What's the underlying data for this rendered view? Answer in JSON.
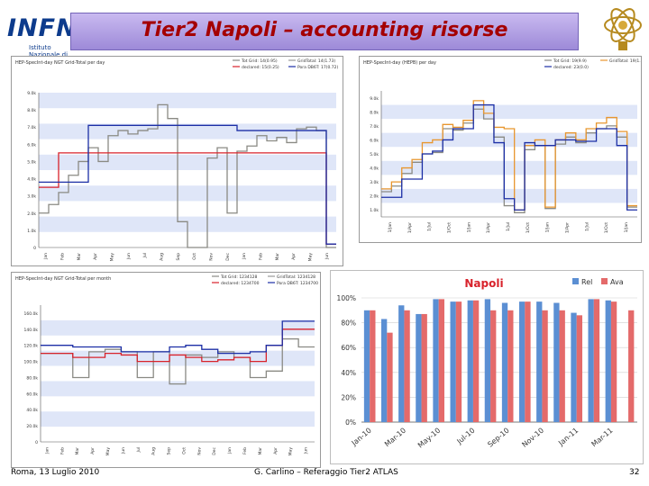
{
  "header": {
    "logo_text": "INFN",
    "logo_subtitle": "Istituto Nazionale di Fisica Nucleare",
    "title": "Tier2 Napoli – accounting risorse"
  },
  "footer": {
    "left": "Roma, 13 Luglio 2010",
    "center": "G. Carlino – Referaggio Tier2 ATLAS",
    "right": "32"
  },
  "colors": {
    "blue": "#1c2fa6",
    "red": "#d8222b",
    "gray": "#8a8a84",
    "orange": "#e8962e",
    "rel": "#5b8fd3",
    "ava": "#e46a6a"
  },
  "chart_data": [
    {
      "type": "line",
      "title": "HEP-SpecInt-day NGT Grid-Total per day",
      "legend": [
        "Tot Grid: 14(0.95)",
        "GridTotal: 14(1.73)",
        "declared: 15(0.25)",
        "Pora DB6T: 17(0.72)"
      ],
      "x_tick_labels": [
        "Jan",
        "Feb",
        "Mar",
        "Apr",
        "May",
        "Jun",
        "Jul",
        "Aug",
        "Sep",
        "Oct",
        "Nov",
        "Dec",
        "Jan",
        "Feb",
        "Mar",
        "Apr",
        "May",
        "Jun"
      ],
      "y_tick_labels": [
        "0",
        "1.0k",
        "2.0k",
        "3.0k",
        "4.0k",
        "5.0k",
        "6.0k",
        "7.0k",
        "8.0k",
        "9.0k"
      ],
      "ylim": [
        0,
        9
      ],
      "series": [
        {
          "name": "Tot Grid",
          "color": "gray",
          "values": [
            2.0,
            2.5,
            3.2,
            4.2,
            5.0,
            5.8,
            5.0,
            6.5,
            6.8,
            6.6,
            6.8,
            6.9,
            8.3,
            7.5,
            1.5,
            0,
            0,
            5.2,
            5.8,
            2.0,
            5.6,
            5.9,
            6.5,
            6.2,
            6.4,
            6.1,
            6.9,
            7.0,
            6.8,
            0
          ]
        },
        {
          "name": "declared",
          "color": "red",
          "values": [
            3.5,
            3.5,
            5.5,
            5.5,
            5.5,
            5.5,
            5.5,
            5.5,
            5.5,
            5.5,
            5.5,
            5.5,
            5.5,
            5.5,
            5.5,
            5.5,
            5.5,
            5.5,
            5.5,
            5.5,
            5.5,
            5.5,
            5.5,
            5.5,
            5.5,
            5.5,
            5.5,
            5.5,
            5.5,
            0.2
          ]
        },
        {
          "name": "Pora DB6T",
          "color": "blue",
          "values": [
            3.8,
            3.8,
            3.8,
            3.8,
            3.8,
            7.1,
            7.1,
            7.1,
            7.1,
            7.1,
            7.1,
            7.1,
            7.1,
            7.1,
            7.1,
            7.1,
            7.1,
            7.1,
            7.1,
            7.1,
            6.8,
            6.8,
            6.8,
            6.8,
            6.8,
            6.8,
            6.8,
            6.8,
            6.8,
            0.2
          ]
        }
      ]
    },
    {
      "type": "line",
      "title": "HEP-SpecInt-day (HEPB) per day",
      "legend": [
        "Tot Grid: 19(9.9)",
        "GridTotal: 19(1.8)",
        "declared: 23(0.0)"
      ],
      "x_tick_labels": [
        "1/Jan",
        "1/Apr",
        "1/Jul",
        "1/Oct",
        "1/Jan",
        "1/Apr",
        "1/Jul",
        "1/Oct",
        "1/Jan",
        "1/Apr",
        "1/Jul",
        "1/Oct",
        "1/Jan"
      ],
      "y_tick_labels": [
        "1.0k",
        "2.0k",
        "3.0k",
        "4.0k",
        "5.0k",
        "6.0k",
        "7.0k",
        "8.0k",
        "9.0k"
      ],
      "ylim": [
        0.5,
        9.5
      ],
      "series": [
        {
          "name": "Tot Grid",
          "color": "gray",
          "values": [
            2.3,
            2.7,
            3.6,
            4.4,
            5.0,
            5.1,
            6.8,
            6.7,
            7.2,
            8.2,
            7.5,
            6.2,
            1.3,
            0.8,
            5.3,
            5.6,
            1.1,
            5.7,
            6.2,
            5.8,
            6.5,
            6.8,
            7.0,
            6.2,
            1.2
          ]
        },
        {
          "name": "GridTotal",
          "color": "orange",
          "values": [
            2.5,
            3.0,
            4.0,
            4.6,
            5.8,
            6.0,
            7.1,
            6.9,
            7.4,
            8.8,
            7.9,
            6.9,
            6.8,
            1.0,
            5.6,
            6.0,
            1.2,
            6.0,
            6.5,
            6.0,
            6.8,
            7.2,
            7.6,
            6.6,
            1.3
          ]
        },
        {
          "name": "declared",
          "color": "blue",
          "values": [
            1.9,
            1.9,
            3.2,
            3.2,
            5.0,
            5.2,
            6.0,
            6.8,
            6.8,
            8.5,
            8.5,
            5.8,
            1.8,
            1.0,
            5.8,
            5.6,
            5.6,
            6.0,
            6.0,
            5.9,
            5.9,
            6.8,
            6.8,
            5.6,
            1.0
          ]
        }
      ]
    },
    {
      "type": "line",
      "title": "HEP-SpecInt-day NGT Grid-Total per month",
      "legend": [
        "Tot Grid: 1234128",
        "GridTotal: 1234128",
        "declared: 1234700",
        "Pora DB6T: 1234700"
      ],
      "x_tick_labels": [
        "Jan",
        "Feb",
        "Mar",
        "Apr",
        "May",
        "Jun",
        "Jul",
        "Aug",
        "Sep",
        "Oct",
        "Nov",
        "Dec",
        "Jan",
        "Feb",
        "Mar",
        "Apr",
        "May",
        "Jun"
      ],
      "y_tick_labels": [
        "0",
        "20.0k",
        "40.0k",
        "60.0k",
        "80.0k",
        "100.0k",
        "120.0k",
        "140.0k",
        "160.0k"
      ],
      "ylim": [
        0,
        170
      ],
      "series": [
        {
          "name": "Tot Grid",
          "color": "gray",
          "values": [
            110,
            110,
            80,
            112,
            115,
            112,
            80,
            112,
            72,
            108,
            105,
            112,
            105,
            80,
            88,
            128,
            118
          ]
        },
        {
          "name": "declared",
          "color": "red",
          "values": [
            110,
            110,
            105,
            105,
            110,
            108,
            100,
            100,
            108,
            105,
            100,
            102,
            105,
            100,
            120,
            140,
            140
          ]
        },
        {
          "name": "Pora DB6T",
          "color": "blue",
          "values": [
            120,
            120,
            118,
            118,
            118,
            112,
            112,
            112,
            118,
            120,
            115,
            110,
            110,
            112,
            120,
            150,
            150
          ]
        }
      ]
    },
    {
      "type": "bar",
      "title": "Napoli",
      "legend": [
        "Rel",
        "Ava"
      ],
      "categories": [
        "Jan-10",
        "Feb-10",
        "Mar-10",
        "Apr-10",
        "May-10",
        "Jun-10",
        "Jul-10",
        "Aug-10",
        "Sep-10",
        "Oct-10",
        "Nov-10",
        "Dec-10",
        "Jan-11",
        "Feb-11",
        "Mar-11",
        "Apr-11"
      ],
      "x_tick_labels": [
        "Jan-10",
        "Mar-10",
        "May-10",
        "Jul-10",
        "Sep-10",
        "Nov-10",
        "Jan-11",
        "Mar-11"
      ],
      "y_tick_labels": [
        "0%",
        "20%",
        "40%",
        "60%",
        "80%",
        "100%"
      ],
      "ylim": [
        0,
        100
      ],
      "series": [
        {
          "name": "Rel",
          "color": "rel",
          "values": [
            90,
            83,
            94,
            87,
            99,
            97,
            98,
            99,
            96,
            97,
            97,
            96,
            88,
            99,
            98,
            0
          ]
        },
        {
          "name": "Ava",
          "color": "ava",
          "values": [
            90,
            72,
            90,
            87,
            99,
            97,
            98,
            90,
            90,
            97,
            90,
            90,
            86,
            99,
            97,
            90
          ]
        }
      ]
    }
  ]
}
